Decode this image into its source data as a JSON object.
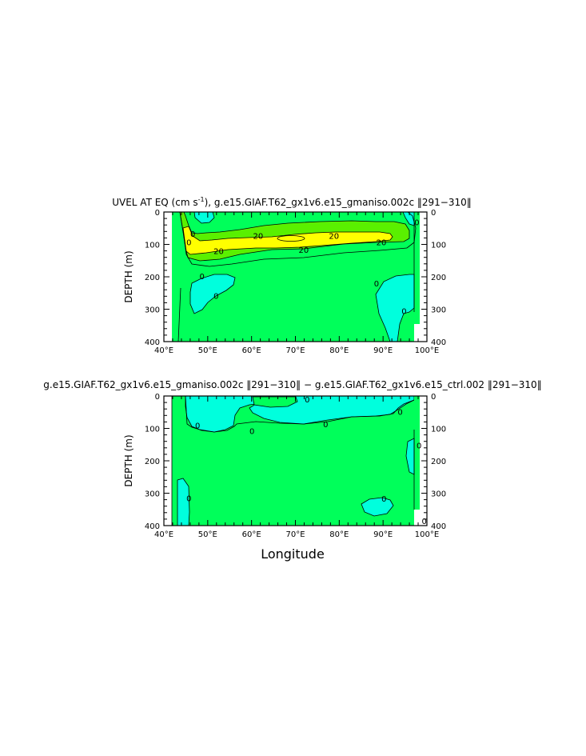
{
  "x_axis_label": "Longitude",
  "chart_data": [
    {
      "type": "contour",
      "title": {
        "prefix": "UVEL AT EQ (cm s",
        "exponent": "-1",
        "suffix": "), g.e15.GIAF.T62_gx1v6.e15_gmaniso.002c ‖291−310‖"
      },
      "ylabel": "DEPTH (m)",
      "xlim_degE": [
        40,
        100
      ],
      "ylim_m": [
        400,
        0
      ],
      "x_ticks": [
        "40°E",
        "50°E",
        "60°E",
        "70°E",
        "80°E",
        "90°E",
        "100°E"
      ],
      "y_ticks": [
        "0",
        "100",
        "200",
        "300",
        "400"
      ],
      "fill_colors": {
        "below_0": "#00ffdd",
        "0_to_10": "#00ff5a",
        "10_to_20": "#5af000",
        "above_20": "#ffff00"
      },
      "contour_labels": [
        {
          "text": "0",
          "lon": 46.6,
          "depth": 67
        },
        {
          "text": "0",
          "lon": 45.7,
          "depth": 92
        },
        {
          "text": "20",
          "lon": 61.5,
          "depth": 73
        },
        {
          "text": "20",
          "lon": 78.8,
          "depth": 73
        },
        {
          "text": "20",
          "lon": 89.6,
          "depth": 93
        },
        {
          "text": "20",
          "lon": 52.5,
          "depth": 120
        },
        {
          "text": "20",
          "lon": 71.9,
          "depth": 116
        },
        {
          "text": "0",
          "lon": 48.7,
          "depth": 198
        },
        {
          "text": "0",
          "lon": 51.9,
          "depth": 258
        },
        {
          "text": "0",
          "lon": 88.5,
          "depth": 220
        },
        {
          "text": "0",
          "lon": 97.7,
          "depth": 31
        },
        {
          "text": "0",
          "lon": 94.8,
          "depth": 305
        }
      ]
    },
    {
      "type": "contour",
      "title": "g.e15.GIAF.T62_gx1v6.e15_gmaniso.002c ‖291−310‖ − g.e15.GIAF.T62_gx1v6.e15_ctrl.002 ‖291−310‖",
      "ylabel": "DEPTH (m)",
      "xlim_degE": [
        40,
        100
      ],
      "ylim_m": [
        400,
        0
      ],
      "x_ticks": [
        "40°E",
        "50°E",
        "60°E",
        "70°E",
        "80°E",
        "90°E",
        "100°E"
      ],
      "y_ticks": [
        "0",
        "100",
        "200",
        "300",
        "400"
      ],
      "fill_colors": {
        "below_0": "#00ffdd",
        "above_0": "#00ff5a"
      },
      "contour_labels": [
        {
          "text": "0",
          "lon": 47.7,
          "depth": 90
        },
        {
          "text": "0",
          "lon": 60.1,
          "depth": 107
        },
        {
          "text": "0",
          "lon": 72.7,
          "depth": 10
        },
        {
          "text": "0",
          "lon": 76.9,
          "depth": 87
        },
        {
          "text": "0",
          "lon": 93.9,
          "depth": 48
        },
        {
          "text": "0",
          "lon": 98.2,
          "depth": 152
        },
        {
          "text": "0",
          "lon": 90.2,
          "depth": 316
        },
        {
          "text": "0",
          "lon": 45.7,
          "depth": 315
        },
        {
          "text": "0",
          "lon": 99.4,
          "depth": 385
        }
      ]
    }
  ]
}
